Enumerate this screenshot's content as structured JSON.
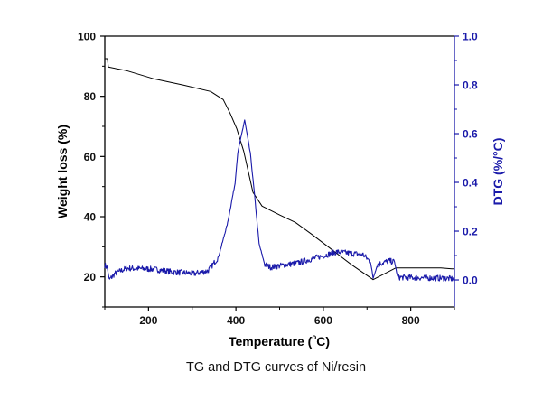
{
  "caption": "TG and DTG curves of Ni/resin",
  "colors": {
    "tg": "#000000",
    "dtg": "#1a1aaa",
    "left_axis": "#000000",
    "right_axis": "#1a1aaa"
  },
  "chart_data": {
    "type": "line",
    "title": "",
    "xlabel": "Temperature (°C)",
    "xlabel_parts": {
      "main": "Temperature (",
      "deg": "o",
      "unit": "C)"
    },
    "ylabel_left": "Weight loss (%)",
    "ylabel_right": "DTG (%/°C)",
    "xlim": [
      100,
      900
    ],
    "ylim_left": [
      10,
      100
    ],
    "ylim_right": [
      -0.111,
      1.0
    ],
    "x_ticks": [
      200,
      400,
      600,
      800
    ],
    "x_minor_ticks": [
      100,
      300,
      500,
      700,
      900
    ],
    "y_left_ticks": [
      20,
      40,
      60,
      80,
      100
    ],
    "y_left_minor_ticks": [
      10,
      30,
      50,
      70,
      90
    ],
    "y_right_ticks": [
      "0.0",
      "0.2",
      "0.4",
      "0.6",
      "0.8",
      "1.0"
    ],
    "y_right_minor_ticks": [
      0.1,
      0.3,
      0.5,
      0.7,
      0.9
    ],
    "grid": false,
    "legend": "none",
    "series": [
      {
        "name": "TG",
        "axis": "left",
        "x": [
          100,
          106,
          108,
          150,
          212,
          280,
          342,
          371,
          387,
          402,
          418,
          439,
          460,
          501,
          536,
          573,
          611,
          666,
          714,
          766,
          869,
          894,
          900
        ],
        "y": [
          92.5,
          92.5,
          89.7,
          88.5,
          85.8,
          83.7,
          81.6,
          78.9,
          74.3,
          69.2,
          61.7,
          48.1,
          43.5,
          40.5,
          38.1,
          34.2,
          30.0,
          23.9,
          19.1,
          23.0,
          23.0,
          22.7,
          22.7
        ]
      },
      {
        "name": "DTG",
        "axis": "right",
        "x": [
          100,
          106,
          110,
          123,
          150,
          212,
          253,
          305,
          336,
          360,
          381,
          398,
          404,
          420,
          433,
          443,
          453,
          466,
          480,
          542,
          631,
          691,
          708,
          714,
          724,
          749,
          763,
          770,
          879,
          900
        ],
        "y": [
          0.06,
          0.05,
          0.0,
          0.026,
          0.048,
          0.044,
          0.033,
          0.026,
          0.037,
          0.093,
          0.233,
          0.396,
          0.519,
          0.656,
          0.519,
          0.344,
          0.148,
          0.063,
          0.052,
          0.07,
          0.115,
          0.104,
          0.074,
          0.007,
          0.063,
          0.078,
          0.074,
          0.011,
          0.007,
          0.004
        ]
      }
    ]
  }
}
